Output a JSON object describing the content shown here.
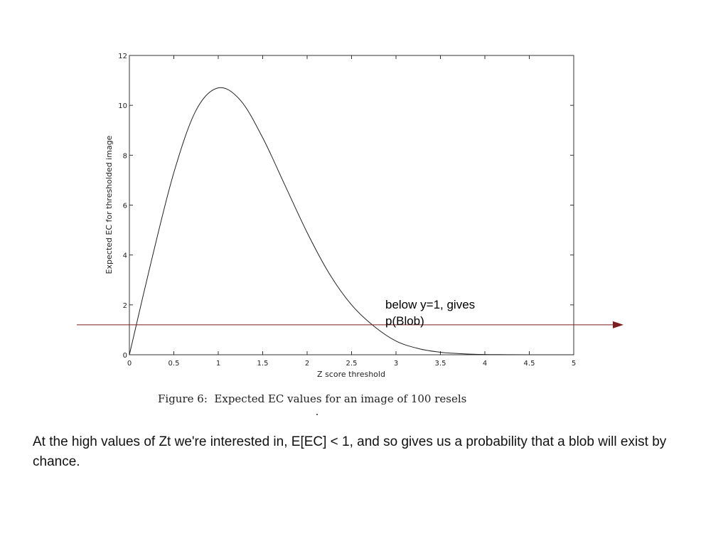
{
  "chart_data": {
    "type": "line",
    "xlabel": "Z score threshold",
    "ylabel": "Expected EC for thresholded image",
    "xlim": [
      0,
      5
    ],
    "ylim": [
      0,
      12
    ],
    "x_ticks": [
      0,
      0.5,
      1,
      1.5,
      2,
      2.5,
      3,
      3.5,
      4,
      4.5,
      5
    ],
    "y_ticks": [
      0,
      2,
      4,
      6,
      8,
      10,
      12
    ],
    "grid": false,
    "series": [
      {
        "x": [
          0,
          0.25,
          0.5,
          0.75,
          1.0,
          1.25,
          1.5,
          1.75,
          2.0,
          2.25,
          2.5,
          2.75,
          3.0,
          3.25,
          3.5,
          3.75,
          4.0,
          4.25,
          4.5,
          4.75,
          5.0
        ],
        "y": [
          0,
          3.8,
          7.3,
          9.8,
          10.7,
          10.2,
          8.7,
          6.8,
          4.9,
          3.25,
          2.0,
          1.15,
          0.55,
          0.25,
          0.1,
          0.04,
          0.01,
          0.005,
          0,
          0,
          0
        ],
        "color": "#222222"
      }
    ],
    "reference_line": {
      "y": 1.2,
      "color": "#7a1f1f"
    },
    "annotation": [
      "below y=1, gives",
      "p(Blob)"
    ],
    "caption": "Figure 6:  Expected EC values for an image of 100 resels"
  },
  "body_text": "At the high values of Zt we're interested in, E[EC] < 1, and so gives us a probability that a blob will exist by chance."
}
